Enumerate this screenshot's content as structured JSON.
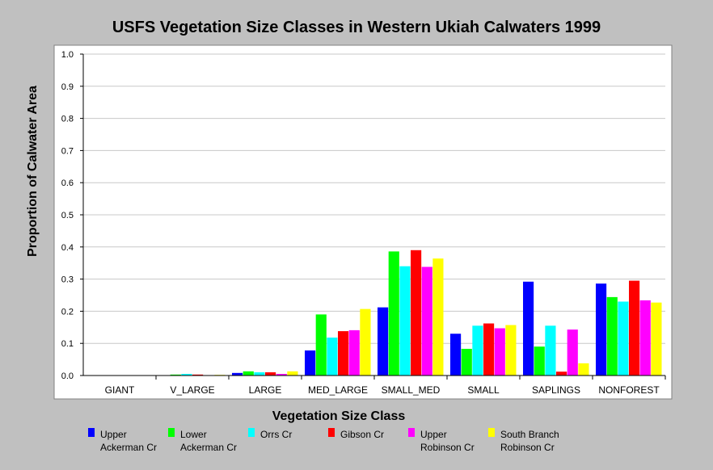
{
  "chart_data": {
    "type": "bar",
    "title": "USFS Vegetation Size Classes in Western Ukiah Calwaters 1999",
    "xlabel": "Vegetation Size Class",
    "ylabel": "Proportion of Calwater Area",
    "ylim": [
      0,
      1.0
    ],
    "yticks": [
      "0.0",
      "0.1",
      "0.2",
      "0.3",
      "0.4",
      "0.5",
      "0.6",
      "0.7",
      "0.8",
      "0.9",
      "1.0"
    ],
    "grid": true,
    "legend_position": "bottom",
    "categories": [
      "GIANT",
      "V_LARGE",
      "LARGE",
      "MED_LARGE",
      "SMALL_MED",
      "SMALL",
      "SAPLINGS",
      "NONFOREST"
    ],
    "series": [
      {
        "name": "Upper\nAckerman Cr",
        "color": "#0000ff",
        "values": [
          0.0,
          0.0,
          0.008,
          0.078,
          0.212,
          0.13,
          0.292,
          0.286
        ]
      },
      {
        "name": "Lower\nAckerman Cr",
        "color": "#00ff00",
        "values": [
          0.0,
          0.003,
          0.013,
          0.19,
          0.386,
          0.083,
          0.09,
          0.244
        ]
      },
      {
        "name": "Orrs Cr",
        "color": "#00ffff",
        "values": [
          0.0,
          0.005,
          0.01,
          0.118,
          0.34,
          0.155,
          0.155,
          0.23
        ]
      },
      {
        "name": "Gibson Cr",
        "color": "#ff0000",
        "values": [
          0.0,
          0.003,
          0.01,
          0.138,
          0.39,
          0.162,
          0.012,
          0.295
        ]
      },
      {
        "name": "Upper\nRobinson Cr",
        "color": "#ff00ff",
        "values": [
          0.0,
          0.0,
          0.005,
          0.141,
          0.338,
          0.147,
          0.143,
          0.234
        ]
      },
      {
        "name": "South Branch\nRobinson Cr",
        "color": "#ffff00",
        "values": [
          0.0,
          0.002,
          0.013,
          0.207,
          0.364,
          0.157,
          0.038,
          0.227
        ]
      }
    ]
  }
}
